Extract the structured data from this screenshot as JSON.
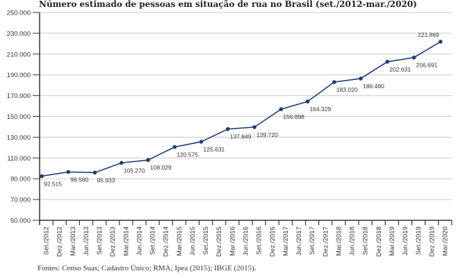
{
  "chart_data": {
    "type": "line",
    "title": "Número estimado de pessoas em situação de rua no Brasil (set./2012-mar./2020)",
    "source": "Fontes: Censo Suas; Cadastro Único; RMA; Ipea (2015); IBGE (2015).",
    "categories": [
      "Set./2012",
      "Dez./2012",
      "Mar./2013",
      "Jun./2013",
      "Set./2013",
      "Dez./2013",
      "Mar./2014",
      "Jun./2014",
      "Set./2014",
      "Dez./2014",
      "Mar./2015",
      "Jun./2015",
      "Set./2015",
      "Dez./2015",
      "Mar./2016",
      "Jun./2016",
      "Set./2016",
      "Dez./2016",
      "Mar./2017",
      "Jun./2017",
      "Set./2017",
      "Dez./2017",
      "Mar./2018",
      "Jun./2018",
      "Set./2018",
      "Dez./2018",
      "Mar./2019",
      "Jun./2019",
      "Set./2019",
      "Dez./2019",
      "Mar./2020"
    ],
    "points": [
      {
        "x": "Set./2012",
        "y": 92515,
        "label": "92.515"
      },
      {
        "x": "Mar./2013",
        "y": 96560,
        "label": "96.560"
      },
      {
        "x": "Set./2013",
        "y": 95933,
        "label": "95.933"
      },
      {
        "x": "Mar./2014",
        "y": 105270,
        "label": "105.270"
      },
      {
        "x": "Set./2014",
        "y": 108029,
        "label": "108.029"
      },
      {
        "x": "Mar./2015",
        "y": 120575,
        "label": "120.575"
      },
      {
        "x": "Set./2015",
        "y": 125631,
        "label": "125.631"
      },
      {
        "x": "Mar./2016",
        "y": 137849,
        "label": "137.849"
      },
      {
        "x": "Set./2016",
        "y": 139720,
        "label": "139.720"
      },
      {
        "x": "Mar./2017",
        "y": 156898,
        "label": "156.898"
      },
      {
        "x": "Set./2017",
        "y": 164329,
        "label": "164.329"
      },
      {
        "x": "Mar./2018",
        "y": 183020,
        "label": "183.020"
      },
      {
        "x": "Set./2018",
        "y": 186480,
        "label": "186.480"
      },
      {
        "x": "Mar./2019",
        "y": 202631,
        "label": "202.631"
      },
      {
        "x": "Set./2019",
        "y": 206691,
        "label": "206.691"
      },
      {
        "x": "Mar./2020",
        "y": 221869,
        "label": "221.869"
      }
    ],
    "yticks": [
      50000,
      70000,
      90000,
      110000,
      130000,
      150000,
      170000,
      190000,
      210000,
      230000,
      250000
    ],
    "ytick_labels": [
      "50.000",
      "70.000",
      "90.000",
      "110.000",
      "130.000",
      "150.000",
      "170.000",
      "190.000",
      "210.000",
      "230.000",
      "250.000"
    ],
    "ylim": [
      50000,
      250000
    ],
    "grid": true,
    "line_color": "#1b3a7a"
  }
}
